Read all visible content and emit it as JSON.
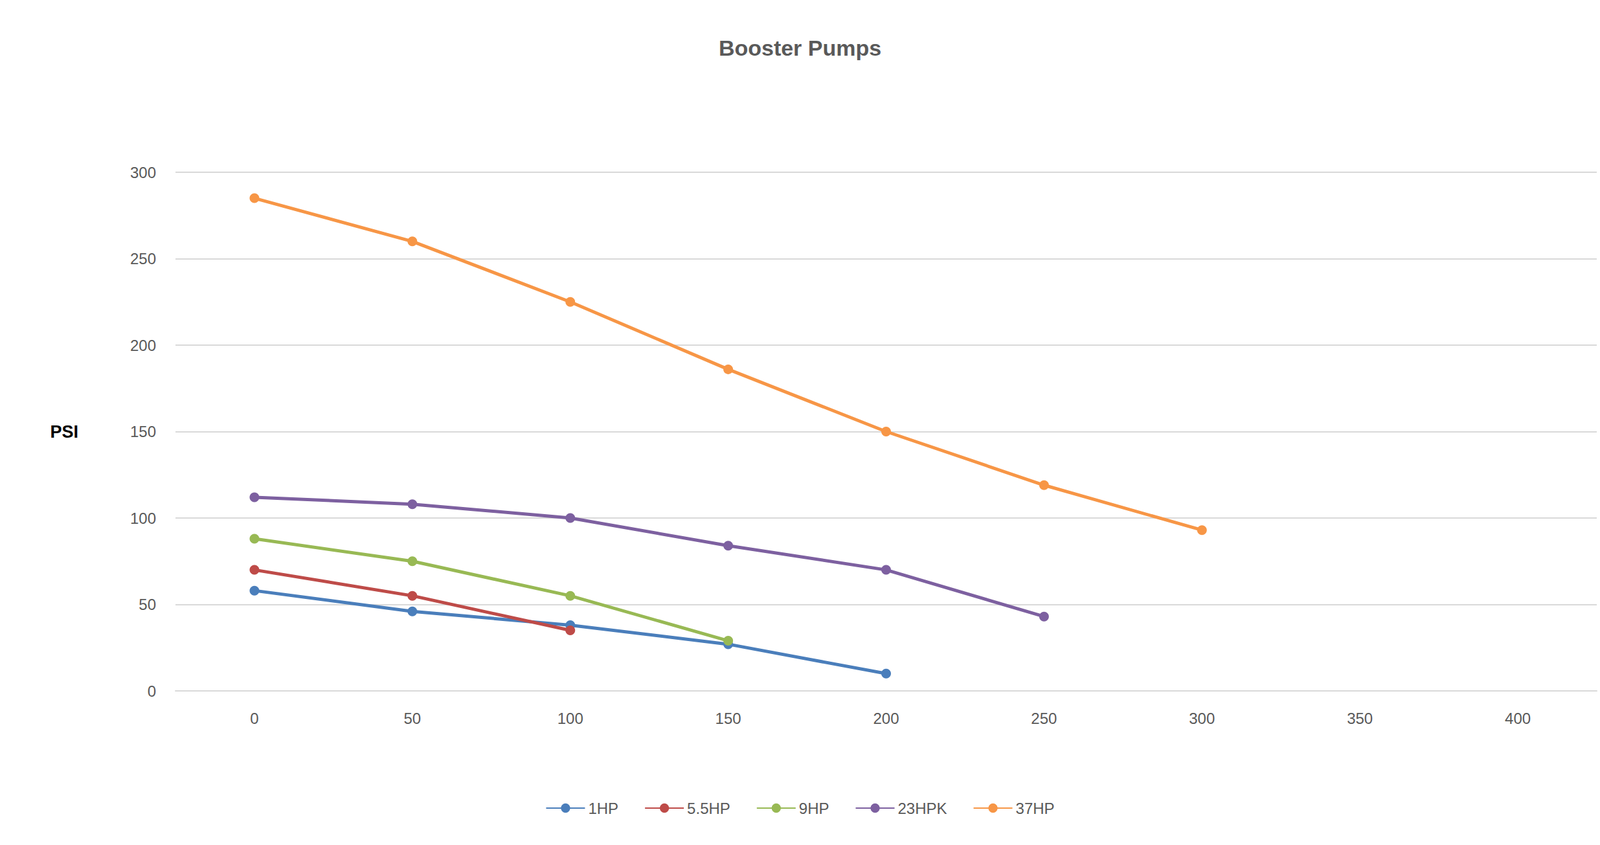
{
  "chart_data": {
    "type": "line",
    "title": "Booster Pumps",
    "y_label": "PSI",
    "categories": [
      "0",
      "50",
      "100",
      "150",
      "200",
      "250",
      "300",
      "350",
      "400"
    ],
    "series": [
      {
        "name": "1HP",
        "color": "#4a7ebb",
        "values": [
          58,
          46,
          38,
          27,
          10,
          null,
          null,
          null,
          null
        ]
      },
      {
        "name": "5.5HP",
        "color": "#be4b48",
        "values": [
          70,
          55,
          35,
          null,
          null,
          null,
          null,
          null,
          null
        ]
      },
      {
        "name": "9HP",
        "color": "#98b954",
        "values": [
          88,
          75,
          55,
          29,
          null,
          null,
          null,
          null,
          null
        ]
      },
      {
        "name": "23HPK",
        "color": "#7d60a0",
        "values": [
          112,
          108,
          100,
          84,
          70,
          43,
          null,
          null,
          null
        ]
      },
      {
        "name": "37HP",
        "color": "#f79646",
        "values": [
          285,
          260,
          225,
          186,
          150,
          119,
          93,
          null,
          null
        ]
      }
    ],
    "ylim": [
      0,
      300
    ],
    "yticks": [
      0,
      50,
      100,
      150,
      200,
      250,
      300
    ],
    "grid": true,
    "legend": "bottom",
    "marker": "circle"
  }
}
